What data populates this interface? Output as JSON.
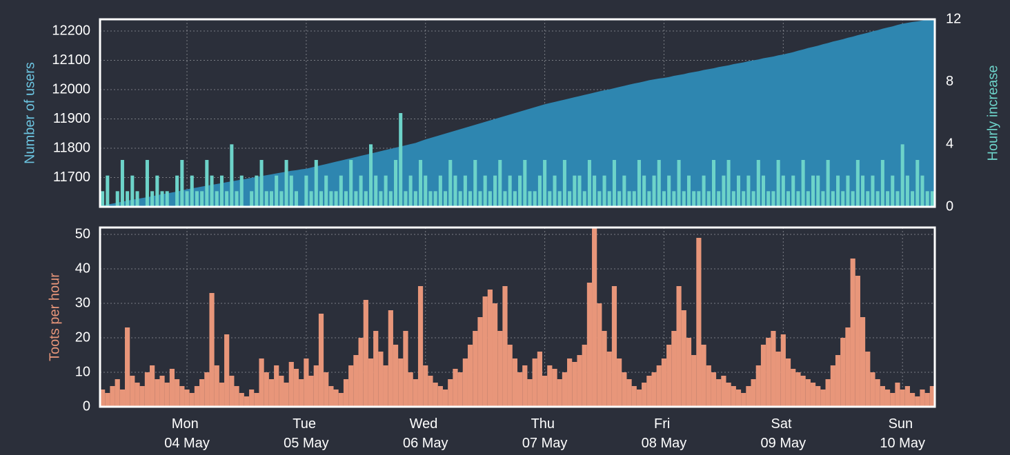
{
  "chart_data": [
    {
      "type": "area_bar",
      "ylim": [
        11600,
        12240
      ],
      "yticks": [
        11700,
        11800,
        11900,
        12000,
        12100,
        12200
      ],
      "y2lim": [
        0,
        12
      ],
      "y2ticks": [
        0,
        4,
        8,
        12
      ],
      "grid": true,
      "series": [
        {
          "name": "Number of users",
          "color": "#2e86b0",
          "label_color": "#6cc4e0",
          "values": [
            11605,
            11608,
            11611,
            11614,
            11618,
            11621,
            11624,
            11627,
            11630,
            11633,
            11636,
            11640,
            11643,
            11646,
            11649,
            11652,
            11656,
            11660,
            11663,
            11666,
            11669,
            11672,
            11675,
            11678,
            11681,
            11684,
            11687,
            11690,
            11693,
            11696,
            11699,
            11702,
            11705,
            11708,
            11711,
            11714,
            11717,
            11720,
            11723,
            11725,
            11728,
            11730,
            11734,
            11738,
            11742,
            11746,
            11750,
            11754,
            11758,
            11762,
            11766,
            11770,
            11774,
            11778,
            11782,
            11786,
            11790,
            11794,
            11798,
            11802,
            11806,
            11810,
            11814,
            11818,
            11824,
            11830,
            11835,
            11840,
            11845,
            11850,
            11855,
            11860,
            11865,
            11870,
            11875,
            11880,
            11885,
            11890,
            11895,
            11900,
            11905,
            11910,
            11915,
            11920,
            11925,
            11930,
            11935,
            11940,
            11945,
            11950,
            11954,
            11958,
            11962,
            11966,
            11970,
            11974,
            11978,
            11982,
            11986,
            11990,
            11994,
            11998,
            12001,
            12005,
            12009,
            12013,
            12017,
            12021,
            12024,
            12028,
            12032,
            12035,
            12038,
            12040,
            12043,
            12047,
            12050,
            12053,
            12057,
            12060,
            12063,
            12067,
            12070,
            12073,
            12077,
            12080,
            12083,
            12087,
            12090,
            12093,
            12097,
            12100,
            12103,
            12107,
            12110,
            12113,
            12117,
            12120,
            12124,
            12128,
            12133,
            12137,
            12142,
            12146,
            12150,
            12155,
            12159,
            12164,
            12168,
            12172,
            12177,
            12181,
            12186,
            12190,
            12194,
            12199,
            12203,
            12208,
            12212,
            12216,
            12221,
            12225,
            12228,
            12231,
            12233,
            12236,
            12238,
            12240
          ]
        },
        {
          "name": "Hourly increase",
          "color": "#6dd3c9",
          "axis": "y2",
          "values": [
            1,
            2,
            0,
            1,
            3,
            1,
            2,
            1,
            0,
            3,
            1,
            2,
            1,
            1,
            0,
            2,
            3,
            1,
            2,
            1,
            1,
            3,
            2,
            1,
            2,
            1,
            4,
            1,
            2,
            0,
            1,
            2,
            3,
            1,
            1,
            2,
            1,
            3,
            2,
            1,
            0,
            2,
            1,
            3,
            1,
            2,
            1,
            1,
            2,
            1,
            3,
            1,
            2,
            1,
            4,
            2,
            1,
            2,
            1,
            3,
            6,
            1,
            2,
            1,
            3,
            2,
            1,
            1,
            2,
            1,
            3,
            2,
            1,
            2,
            1,
            3,
            1,
            2,
            1,
            2,
            3,
            1,
            2,
            1,
            2,
            3,
            1,
            1,
            2,
            3,
            1,
            2,
            1,
            3,
            1,
            2,
            2,
            1,
            3,
            2,
            1,
            2,
            1,
            3,
            1,
            2,
            1,
            1,
            3,
            2,
            1,
            2,
            3,
            1,
            2,
            1,
            3,
            1,
            2,
            1,
            1,
            2,
            1,
            3,
            1,
            2,
            3,
            1,
            2,
            1,
            2,
            1,
            3,
            2,
            1,
            1,
            3,
            2,
            1,
            2,
            1,
            3,
            1,
            2,
            2,
            1,
            3,
            1,
            2,
            1,
            2,
            1,
            3,
            2,
            1,
            2,
            1,
            3,
            1,
            2,
            1,
            4,
            2,
            1,
            3,
            2,
            1,
            1
          ]
        }
      ]
    },
    {
      "type": "bar",
      "ylim": [
        0,
        52
      ],
      "yticks": [
        0,
        10,
        20,
        30,
        40,
        50
      ],
      "grid": true,
      "categories": [
        null,
        null,
        null,
        null,
        null,
        null,
        null,
        null,
        null,
        null,
        null,
        null,
        null,
        null,
        null,
        null,
        null,
        "Mon 04 May",
        null,
        null,
        null,
        null,
        null,
        null,
        null,
        null,
        null,
        null,
        null,
        null,
        null,
        null,
        null,
        null,
        null,
        null,
        null,
        null,
        null,
        null,
        null,
        "Tue 05 May",
        null,
        null,
        null,
        null,
        null,
        null,
        null,
        null,
        null,
        null,
        null,
        null,
        null,
        null,
        null,
        null,
        null,
        null,
        null,
        null,
        null,
        null,
        null,
        "Wed 06 May",
        null,
        null,
        null,
        null,
        null,
        null,
        null,
        null,
        null,
        null,
        null,
        null,
        null,
        null,
        null,
        null,
        null,
        null,
        null,
        null,
        null,
        null,
        null,
        "Thu 07 May",
        null,
        null,
        null,
        null,
        null,
        null,
        null,
        null,
        null,
        null,
        null,
        null,
        null,
        null,
        null,
        null,
        null,
        null,
        null,
        null,
        null,
        null,
        null,
        "Fri 08 May",
        null,
        null,
        null,
        null,
        null,
        null,
        null,
        null,
        null,
        null,
        null,
        null,
        null,
        null,
        null,
        null,
        null,
        null,
        null,
        null,
        null,
        null,
        null,
        "Sat 09 May",
        null,
        null,
        null,
        null,
        null,
        null,
        null,
        null,
        null,
        null,
        null,
        null,
        null,
        null,
        null,
        null,
        null,
        null,
        null,
        null,
        null,
        null,
        null,
        "Sun 10 May",
        null,
        null,
        null,
        null,
        null,
        null
      ],
      "series": [
        {
          "name": "Toots per hour",
          "color": "#e8967a",
          "values": [
            5,
            4,
            6,
            8,
            5,
            23,
            9,
            7,
            6,
            10,
            12,
            8,
            9,
            7,
            11,
            8,
            6,
            5,
            4,
            6,
            8,
            10,
            33,
            12,
            7,
            21,
            9,
            6,
            4,
            3,
            5,
            4,
            14,
            10,
            8,
            12,
            9,
            7,
            13,
            11,
            8,
            14,
            9,
            12,
            27,
            10,
            6,
            5,
            4,
            8,
            12,
            15,
            20,
            31,
            14,
            22,
            16,
            12,
            28,
            18,
            14,
            22,
            10,
            8,
            35,
            12,
            9,
            7,
            6,
            5,
            8,
            11,
            10,
            14,
            18,
            22,
            26,
            32,
            34,
            30,
            22,
            35,
            18,
            14,
            10,
            12,
            8,
            14,
            16,
            9,
            12,
            11,
            8,
            10,
            14,
            13,
            15,
            18,
            36,
            52,
            30,
            22,
            16,
            35,
            14,
            10,
            8,
            6,
            5,
            7,
            9,
            10,
            12,
            14,
            18,
            22,
            35,
            28,
            20,
            15,
            49,
            18,
            12,
            10,
            8,
            9,
            7,
            6,
            5,
            4,
            6,
            8,
            12,
            18,
            20,
            22,
            16,
            21,
            14,
            11,
            10,
            9,
            8,
            7,
            6,
            5,
            8,
            12,
            15,
            20,
            23,
            43,
            38,
            26,
            16,
            10,
            8,
            6,
            5,
            4,
            7,
            5,
            6,
            4,
            3,
            5,
            4,
            6
          ]
        }
      ]
    }
  ]
}
